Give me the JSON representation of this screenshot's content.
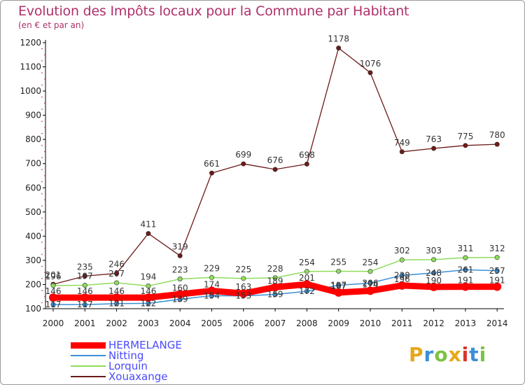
{
  "title": "Evolution des Impôts locaux pour la Commune par Habitant",
  "subtitle": "(en € et par an)",
  "logo": {
    "letters": [
      "P",
      "r",
      "o",
      "x",
      "i",
      "t",
      "i"
    ],
    "colors": [
      "#e6a817",
      "#3a8fd6",
      "#7cc242",
      "#e6a817",
      "#d8352f",
      "#3a8fd6",
      "#7cc242"
    ]
  },
  "colors": {
    "HERMELANGE": "#ff0000",
    "Nitting": "#3d8fd6",
    "Lorquin": "#8fdc5c",
    "Xouaxange": "#6e1a1a",
    "axis": "#000000",
    "grid_tick": "#b0306a"
  },
  "chart_data": {
    "type": "line",
    "title": "Evolution des Impôts locaux pour la Commune par Habitant",
    "subtitle": "(en € et par an)",
    "xlabel": "",
    "ylabel": "",
    "x": [
      "2000",
      "2001",
      "2002",
      "2003",
      "2004",
      "2005",
      "2006",
      "2007",
      "2008",
      "2009",
      "2010",
      "2011",
      "2012",
      "2013",
      "2014"
    ],
    "ylim": [
      100,
      1200
    ],
    "yticks": [
      100,
      200,
      300,
      400,
      500,
      600,
      700,
      800,
      900,
      1000,
      1100,
      1200
    ],
    "grid": false,
    "legend_position": "bottom-left",
    "series": [
      {
        "name": "HERMELANGE",
        "values": [
          146,
          146,
          146,
          146,
          160,
          174,
          163,
          189,
          201,
          167,
          174,
          196,
          190,
          191,
          191
        ],
        "labels": [
          "146",
          "146",
          "146",
          "146",
          "160",
          "174",
          "163",
          "189",
          "201",
          "167",
          "174",
          "196",
          "190",
          "191",
          "191"
        ]
      },
      {
        "name": "Nitting",
        "values": [
          117,
          117,
          121,
          122,
          139,
          154,
          153,
          159,
          172,
          197,
          206,
          238,
          248,
          261,
          257
        ],
        "labels": [
          "117",
          "117",
          "121",
          "122",
          "139",
          "154",
          "153",
          "159",
          "172",
          "197",
          "206",
          "238",
          "248",
          "261",
          "257"
        ]
      },
      {
        "name": "Lorquin",
        "values": [
          196,
          197,
          207,
          194,
          223,
          229,
          225,
          228,
          254,
          255,
          254,
          302,
          303,
          311,
          312
        ],
        "labels": [
          "196",
          "197",
          "207",
          "194",
          "223",
          "229",
          "225",
          "228",
          "254",
          "255",
          "254",
          "302",
          "303",
          "311",
          "312"
        ]
      },
      {
        "name": "Xouaxange",
        "values": [
          201,
          235,
          246,
          411,
          319,
          661,
          699,
          676,
          698,
          1178,
          1076,
          749,
          763,
          775,
          780
        ],
        "labels": [
          "201",
          "235",
          "246",
          "411",
          "319",
          "661",
          "699",
          "676",
          "698",
          "1178",
          "1076",
          "749",
          "763",
          "775",
          "780"
        ]
      }
    ]
  }
}
